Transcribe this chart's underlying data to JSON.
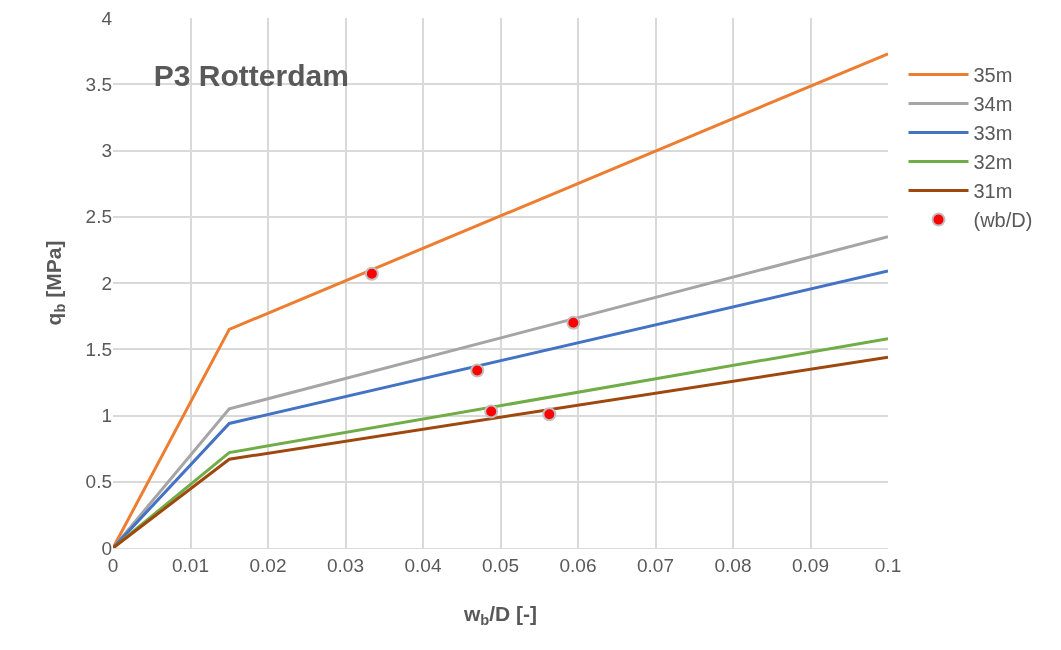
{
  "chart_data": {
    "type": "line",
    "title": "P3 Rotterdam",
    "xlabel": "w$_{b}$/D [-]",
    "ylabel": "q$_{b}$ [MPa]",
    "xlim": [
      0,
      0.1
    ],
    "xticks": [
      0,
      0.01,
      0.02,
      0.03,
      0.04,
      0.05,
      0.06,
      0.07,
      0.08,
      0.09,
      0.1
    ],
    "ylim": [
      0,
      4
    ],
    "yticks": [
      0,
      0.5,
      1,
      1.5,
      2,
      2.5,
      3,
      3.5,
      4
    ],
    "grid": true,
    "legend": "right",
    "marker": "none",
    "line_style": "solid",
    "series": [
      {
        "name": "35m",
        "color": "#ed7d31",
        "x": [
          0,
          0.015,
          0.1
        ],
        "values": [
          0,
          1.65,
          3.73
        ]
      },
      {
        "name": "34m",
        "color": "#a5a5a5",
        "x": [
          0,
          0.015,
          0.1
        ],
        "values": [
          0,
          1.05,
          2.35
        ]
      },
      {
        "name": "33m",
        "color": "#4472c4",
        "x": [
          0,
          0.015,
          0.1
        ],
        "values": [
          0,
          0.94,
          2.09
        ]
      },
      {
        "name": "32m",
        "color": "#70ad47",
        "x": [
          0,
          0.015,
          0.1
        ],
        "values": [
          0,
          0.72,
          1.58
        ]
      },
      {
        "name": "31m",
        "color": "#9e480e",
        "x": [
          0,
          0.015,
          0.1
        ],
        "values": [
          0,
          0.67,
          1.44
        ]
      },
      {
        "name": "(wb/D)",
        "type": "scatter",
        "marker": "circle",
        "color": "#ff0000",
        "x": [
          0.0334,
          0.0594,
          0.047,
          0.0488,
          0.0563
        ],
        "values": [
          2.07,
          1.7,
          1.34,
          1.03,
          1.01
        ]
      }
    ]
  }
}
